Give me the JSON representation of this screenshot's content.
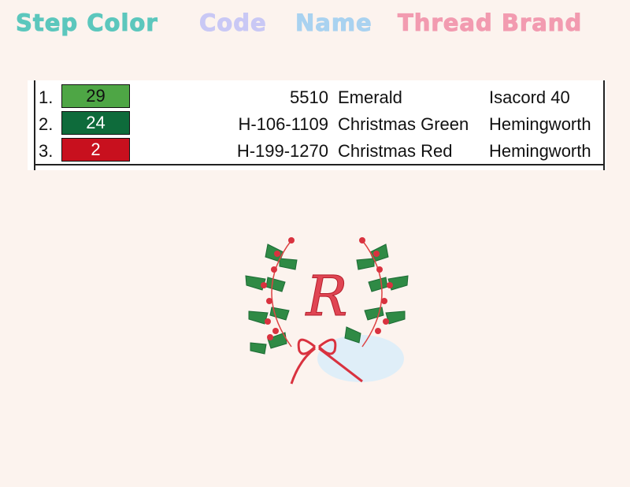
{
  "headers": {
    "step_color": "Step Color",
    "code": "Code",
    "name": "Name",
    "thread_brand": "Thread Brand",
    "colors": {
      "step_color": "#5cc7bd",
      "code": "#c9c8f5",
      "name": "#a9d2f0",
      "thread_brand": "#f29bb0"
    }
  },
  "rows": [
    {
      "step": "1.",
      "stitches": "29",
      "swatch": "#4ea645",
      "text_color": "#111111",
      "code": "5510",
      "name": "Emerald",
      "brand": "Isacord 40"
    },
    {
      "step": "2.",
      "stitches": "24",
      "swatch": "#0e6b3b",
      "text_color": "#ffffff",
      "code": "H-106-1109",
      "name": "Christmas Green",
      "brand": "Hemingworth"
    },
    {
      "step": "3.",
      "stitches": "2",
      "swatch": "#c8101e",
      "text_color": "#ffffff",
      "code": "H-199-1270",
      "name": "Christmas Red",
      "brand": "Hemingworth"
    }
  ],
  "design": {
    "monogram": "R",
    "icon": "holly-wreath-monogram"
  }
}
